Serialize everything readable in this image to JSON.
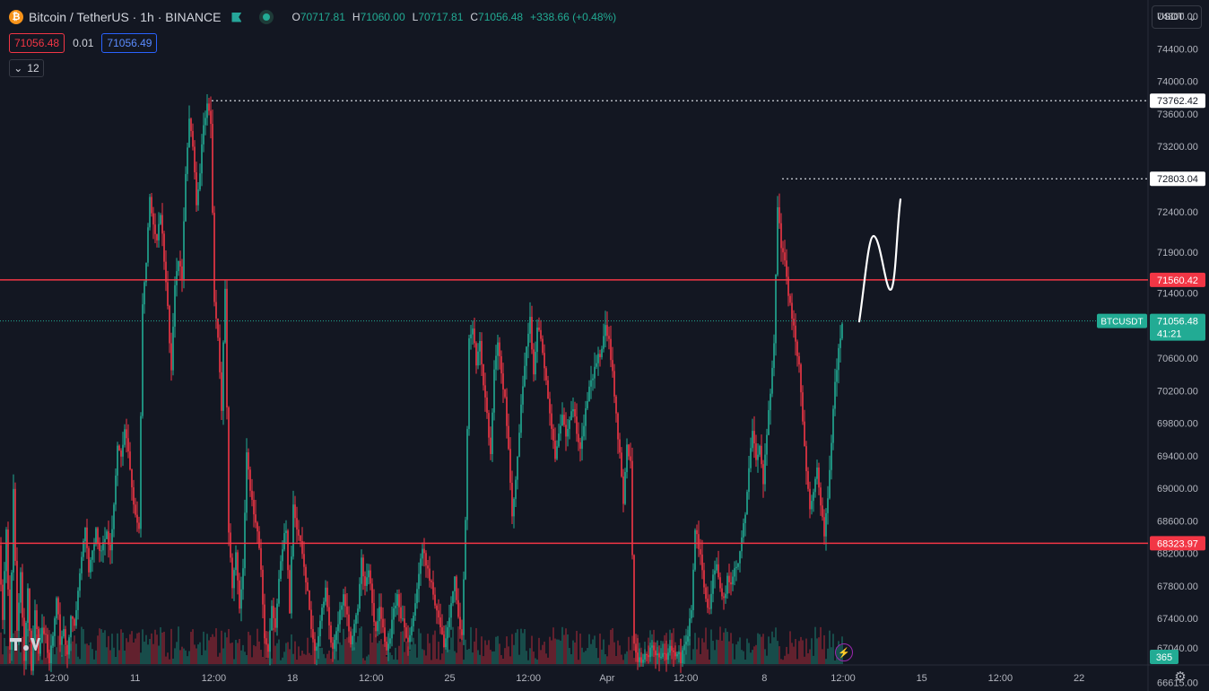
{
  "header": {
    "coin_symbol": "₿",
    "title": "Bitcoin / TetherUS · 1h · BINANCE",
    "ohlc": [
      {
        "k": "O",
        "v": "70717.81"
      },
      {
        "k": "H",
        "v": "71060.00"
      },
      {
        "k": "L",
        "v": "70717.81"
      },
      {
        "k": "C",
        "v": "71056.48"
      },
      {
        "k": "",
        "v": "+338.66 (+0.48%)"
      }
    ],
    "sell_price": "71056.48",
    "spread": "0.01",
    "buy_price": "71056.49",
    "collapse_count": "12",
    "chevron": "⌄"
  },
  "currency": {
    "label": "USDT",
    "chevron": "⌄"
  },
  "icons": {
    "coin": "bitcoin-icon",
    "flag": "flag-icon",
    "live": "market-open-icon",
    "flash": "flash-icon",
    "settings": "gear-icon",
    "logo": "tradingview-logo"
  },
  "flash_glyph": "⚡",
  "settings_glyph": "⚙",
  "colors": {
    "background": "#131722",
    "up": "#22ab94",
    "down": "#f23645",
    "level_line": "#f23645",
    "text": "#d1d4dc"
  },
  "chart_data": {
    "type": "candlestick",
    "symbol": "BTCUSDT",
    "interval": "1h",
    "price_axis": {
      "min": 66840,
      "max": 75000,
      "ticks": [
        "74800.00",
        "74400.00",
        "74000.00",
        "73600.00",
        "73200.00",
        "72400.00",
        "71900.00",
        "71400.00",
        "70600.00",
        "70200.00",
        "69800.00",
        "69400.00",
        "69000.00",
        "68600.00",
        "68200.00",
        "67800.00",
        "67400.00",
        "67040.00",
        "66615.00"
      ]
    },
    "time_axis": {
      "ticks": [
        "12:00",
        "11",
        "12:00",
        "18",
        "12:00",
        "25",
        "12:00",
        "Apr",
        "12:00",
        "8",
        "12:00",
        "15",
        "12:00",
        "22"
      ]
    },
    "horizontal_levels": [
      {
        "price": 71560.42,
        "label": "71560.42"
      },
      {
        "price": 68323.97,
        "label": "68323.97"
      }
    ],
    "high_markers": [
      {
        "price": 73762.42,
        "label": "73762.42"
      },
      {
        "price": 72803.04,
        "label": "72803.04"
      }
    ],
    "last_price": {
      "price": 71056.48,
      "label": "71056.48",
      "countdown": "41:21",
      "symbol_tag": "BTCUSDT"
    },
    "volume_label": "365",
    "price_path": [
      [
        0,
        68300
      ],
      [
        4,
        67400
      ],
      [
        8,
        68500
      ],
      [
        12,
        67000
      ],
      [
        16,
        69000
      ],
      [
        20,
        67200
      ],
      [
        24,
        68000
      ],
      [
        28,
        66900
      ],
      [
        32,
        67800
      ],
      [
        36,
        66800
      ],
      [
        40,
        67500
      ],
      [
        44,
        67000
      ],
      [
        48,
        67300
      ],
      [
        52,
        67200
      ],
      [
        56,
        66850
      ],
      [
        60,
        67200
      ],
      [
        64,
        67700
      ],
      [
        68,
        67100
      ],
      [
        72,
        67300
      ],
      [
        76,
        66950
      ],
      [
        80,
        67400
      ],
      [
        84,
        67300
      ],
      [
        88,
        67700
      ],
      [
        92,
        68200
      ],
      [
        96,
        68500
      ],
      [
        100,
        68000
      ],
      [
        104,
        68200
      ],
      [
        108,
        68500
      ],
      [
        112,
        68200
      ],
      [
        116,
        68300
      ],
      [
        120,
        68500
      ],
      [
        124,
        68200
      ],
      [
        128,
        68800
      ],
      [
        132,
        69500
      ],
      [
        136,
        69400
      ],
      [
        140,
        69700
      ],
      [
        144,
        69500
      ],
      [
        148,
        69000
      ],
      [
        152,
        68700
      ],
      [
        156,
        68500
      ],
      [
        160,
        71300
      ],
      [
        164,
        71800
      ],
      [
        168,
        72600
      ],
      [
        172,
        72200
      ],
      [
        176,
        72000
      ],
      [
        180,
        72400
      ],
      [
        184,
        71800
      ],
      [
        188,
        71200
      ],
      [
        192,
        70400
      ],
      [
        196,
        71500
      ],
      [
        200,
        71800
      ],
      [
        204,
        71600
      ],
      [
        208,
        72900
      ],
      [
        212,
        73500
      ],
      [
        216,
        73200
      ],
      [
        220,
        72500
      ],
      [
        224,
        72900
      ],
      [
        228,
        73500
      ],
      [
        232,
        73700
      ],
      [
        236,
        73500
      ],
      [
        240,
        71300
      ],
      [
        244,
        70800
      ],
      [
        248,
        70000
      ],
      [
        252,
        71500
      ],
      [
        256,
        68500
      ],
      [
        260,
        67800
      ],
      [
        264,
        68200
      ],
      [
        268,
        67500
      ],
      [
        272,
        68000
      ],
      [
        276,
        69400
      ],
      [
        280,
        69000
      ],
      [
        284,
        68700
      ],
      [
        288,
        68500
      ],
      [
        292,
        68000
      ],
      [
        296,
        67200
      ],
      [
        300,
        67000
      ],
      [
        304,
        67600
      ],
      [
        308,
        67300
      ],
      [
        312,
        67900
      ],
      [
        316,
        68300
      ],
      [
        320,
        68500
      ],
      [
        324,
        67500
      ],
      [
        328,
        68800
      ],
      [
        332,
        68500
      ],
      [
        336,
        68300
      ],
      [
        340,
        68000
      ],
      [
        344,
        67700
      ],
      [
        348,
        67300
      ],
      [
        352,
        67000
      ],
      [
        356,
        67200
      ],
      [
        360,
        67500
      ],
      [
        364,
        67800
      ],
      [
        368,
        67300
      ],
      [
        372,
        67000
      ],
      [
        376,
        67200
      ],
      [
        380,
        67500
      ],
      [
        384,
        67700
      ],
      [
        388,
        67400
      ],
      [
        392,
        67100
      ],
      [
        396,
        67300
      ],
      [
        400,
        67500
      ],
      [
        404,
        68100
      ],
      [
        408,
        67800
      ],
      [
        412,
        68000
      ],
      [
        416,
        67600
      ],
      [
        420,
        67200
      ],
      [
        424,
        67500
      ],
      [
        428,
        67300
      ],
      [
        432,
        67000
      ],
      [
        436,
        67200
      ],
      [
        440,
        67500
      ],
      [
        444,
        67700
      ],
      [
        448,
        67400
      ],
      [
        452,
        67300
      ],
      [
        456,
        67100
      ],
      [
        460,
        67300
      ],
      [
        464,
        67600
      ],
      [
        468,
        67900
      ],
      [
        472,
        68300
      ],
      [
        476,
        68100
      ],
      [
        480,
        67900
      ],
      [
        484,
        67700
      ],
      [
        488,
        67500
      ],
      [
        492,
        67300
      ],
      [
        496,
        67100
      ],
      [
        500,
        67300
      ],
      [
        504,
        67600
      ],
      [
        508,
        67900
      ],
      [
        512,
        67400
      ],
      [
        516,
        67200
      ],
      [
        520,
        68600
      ],
      [
        524,
        70800
      ],
      [
        528,
        71000
      ],
      [
        532,
        70500
      ],
      [
        536,
        70800
      ],
      [
        540,
        70300
      ],
      [
        544,
        69900
      ],
      [
        548,
        69400
      ],
      [
        552,
        70500
      ],
      [
        556,
        70800
      ],
      [
        560,
        70400
      ],
      [
        564,
        70100
      ],
      [
        568,
        69500
      ],
      [
        572,
        68700
      ],
      [
        576,
        69100
      ],
      [
        580,
        69700
      ],
      [
        584,
        70300
      ],
      [
        588,
        70700
      ],
      [
        592,
        71100
      ],
      [
        596,
        70400
      ],
      [
        600,
        71000
      ],
      [
        604,
        70800
      ],
      [
        608,
        70500
      ],
      [
        612,
        70100
      ],
      [
        616,
        69700
      ],
      [
        620,
        69400
      ],
      [
        624,
        69700
      ],
      [
        628,
        69900
      ],
      [
        632,
        69600
      ],
      [
        636,
        69800
      ],
      [
        640,
        70000
      ],
      [
        644,
        69700
      ],
      [
        648,
        69500
      ],
      [
        652,
        69800
      ],
      [
        656,
        70100
      ],
      [
        660,
        70300
      ],
      [
        664,
        70500
      ],
      [
        668,
        70600
      ],
      [
        672,
        70700
      ],
      [
        676,
        71000
      ],
      [
        680,
        70800
      ],
      [
        684,
        70400
      ],
      [
        688,
        69900
      ],
      [
        692,
        69400
      ],
      [
        696,
        68800
      ],
      [
        700,
        69500
      ],
      [
        704,
        69300
      ],
      [
        708,
        67100
      ],
      [
        712,
        66900
      ],
      [
        716,
        66850
      ],
      [
        720,
        67000
      ],
      [
        724,
        66900
      ],
      [
        728,
        67100
      ],
      [
        732,
        66950
      ],
      [
        736,
        66900
      ],
      [
        740,
        67000
      ],
      [
        744,
        66900
      ],
      [
        748,
        67100
      ],
      [
        752,
        66950
      ],
      [
        756,
        67000
      ],
      [
        760,
        66900
      ],
      [
        764,
        67100
      ],
      [
        768,
        67200
      ],
      [
        772,
        67500
      ],
      [
        776,
        68500
      ],
      [
        780,
        68300
      ],
      [
        784,
        68000
      ],
      [
        788,
        67600
      ],
      [
        792,
        67500
      ],
      [
        796,
        67900
      ],
      [
        800,
        68100
      ],
      [
        804,
        67800
      ],
      [
        808,
        67600
      ],
      [
        812,
        67900
      ],
      [
        816,
        67800
      ],
      [
        820,
        68000
      ],
      [
        824,
        68100
      ],
      [
        828,
        68400
      ],
      [
        832,
        68700
      ],
      [
        836,
        69200
      ],
      [
        840,
        69700
      ],
      [
        844,
        69300
      ],
      [
        848,
        69500
      ],
      [
        852,
        69100
      ],
      [
        856,
        69700
      ],
      [
        860,
        70200
      ],
      [
        864,
        70800
      ],
      [
        868,
        72500
      ],
      [
        872,
        72000
      ],
      [
        876,
        71800
      ],
      [
        880,
        71400
      ],
      [
        884,
        71100
      ],
      [
        888,
        70800
      ],
      [
        892,
        70500
      ],
      [
        896,
        69800
      ],
      [
        900,
        69200
      ],
      [
        904,
        68700
      ],
      [
        908,
        69000
      ],
      [
        912,
        69300
      ],
      [
        916,
        68800
      ],
      [
        920,
        68400
      ],
      [
        924,
        68900
      ],
      [
        928,
        69600
      ],
      [
        932,
        70300
      ],
      [
        936,
        70700
      ],
      [
        940,
        71056
      ]
    ],
    "annotation": {
      "type": "projection-arrow",
      "points": [
        [
          958,
          71050
        ],
        [
          974,
          72100
        ],
        [
          994,
          71450
        ],
        [
          1004,
          72550
        ]
      ]
    }
  }
}
